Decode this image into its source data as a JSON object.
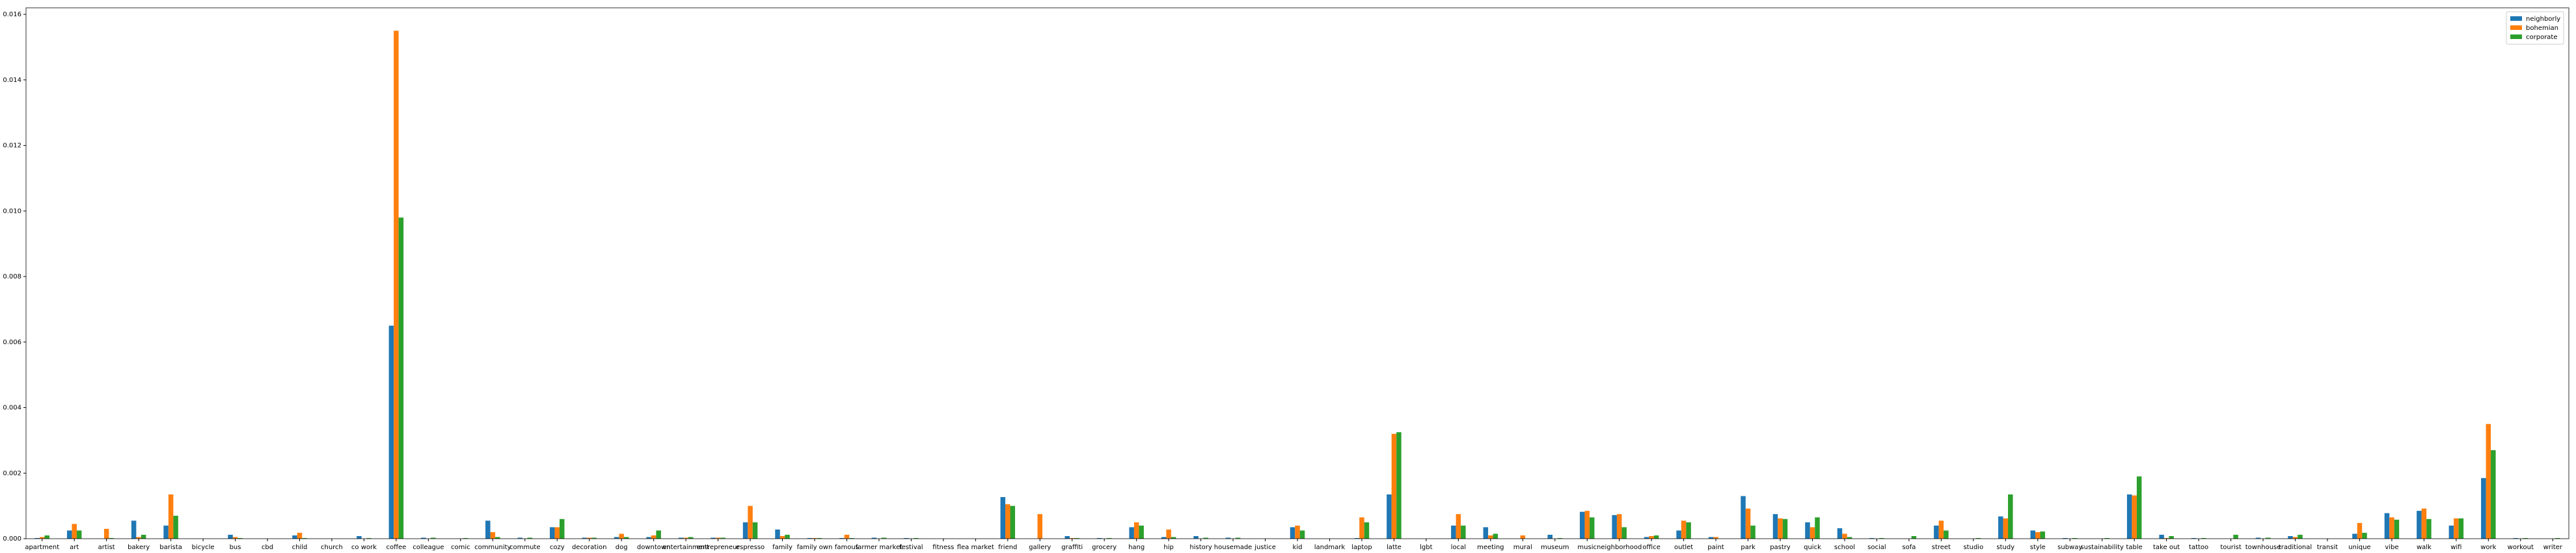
{
  "chart_data": {
    "type": "bar",
    "categories": [
      "apartment",
      "art",
      "artist",
      "bakery",
      "barista",
      "bicycle",
      "bus",
      "cbd",
      "child",
      "church",
      "co work",
      "coffee",
      "colleague",
      "comic",
      "community",
      "commute",
      "cozy",
      "decoration",
      "dog",
      "downtown",
      "entertainment",
      "entrepreneur",
      "espresso",
      "family",
      "family own",
      "famous",
      "farmer market",
      "festival",
      "fitness",
      "flea market",
      "friend",
      "gallery",
      "graffiti",
      "grocery",
      "hang",
      "hip",
      "history",
      "housemade",
      "justice",
      "kid",
      "landmark",
      "laptop",
      "latte",
      "lgbt",
      "local",
      "meeting",
      "mural",
      "museum",
      "music",
      "neighborhood",
      "office",
      "outlet",
      "paint",
      "park",
      "pastry",
      "quick",
      "school",
      "social",
      "sofa",
      "street",
      "studio",
      "study",
      "style",
      "subway",
      "sustainability",
      "table",
      "take out",
      "tattoo",
      "tourist",
      "townhouse",
      "traditional",
      "transit",
      "unique",
      "vibe",
      "walk",
      "wifi",
      "work",
      "workout",
      "writer"
    ],
    "series": [
      {
        "name": "neighborly",
        "color": "#1f77b4",
        "values": [
          2e-05,
          0.00025,
          0,
          0.00055,
          0.0004,
          0,
          0.00012,
          0,
          0.0001,
          0,
          8e-05,
          0.0065,
          3e-05,
          0,
          0.00055,
          3e-05,
          0.00035,
          3e-05,
          5e-05,
          5e-05,
          3e-05,
          3e-05,
          0.0005,
          0.00028,
          2e-05,
          2e-05,
          3e-05,
          2e-05,
          0,
          0,
          0.00127,
          0,
          8e-05,
          2e-05,
          0.00035,
          5e-05,
          8e-05,
          3e-05,
          0,
          0.00035,
          0,
          2e-05,
          0.00135,
          0,
          0.0004,
          0.00035,
          0,
          0.00012,
          0.00082,
          0.00072,
          5e-05,
          0.00025,
          5e-05,
          0.0013,
          0.00075,
          0.0005,
          0.00032,
          2e-05,
          0,
          0.0004,
          0,
          0.00068,
          0.00025,
          2e-05,
          0,
          0.00135,
          0.00012,
          2e-05,
          0,
          3e-05,
          8e-05,
          0,
          0.00015,
          0.00078,
          0.00085,
          0.0004,
          0.00185,
          2e-05,
          0
        ]
      },
      {
        "name": "bohemian",
        "color": "#ff7f0e",
        "values": [
          5e-05,
          0.00045,
          0.0003,
          5e-05,
          0.00135,
          0,
          5e-05,
          0,
          0.00018,
          0,
          0,
          0.0155,
          0,
          0,
          0.0002,
          0,
          0.00035,
          3e-05,
          0.00015,
          0.0001,
          3e-05,
          3e-05,
          0.001,
          8e-05,
          2e-05,
          0.00012,
          0,
          0,
          0,
          0,
          0.00105,
          0.00075,
          2e-05,
          0,
          0.0005,
          0.00028,
          0,
          0,
          0,
          0.0004,
          0,
          0.00065,
          0.0032,
          0,
          0.00075,
          0.0001,
          0.0001,
          0,
          0.00085,
          0.00075,
          8e-05,
          0.00055,
          5e-05,
          0.00092,
          0.00062,
          0.00035,
          0.00015,
          0,
          0,
          0.00055,
          0,
          0.00062,
          0.0002,
          0,
          0,
          0.00132,
          2e-05,
          0,
          0,
          0,
          5e-05,
          0,
          0.00048,
          0.00065,
          0.00092,
          0.00062,
          0.0035,
          0,
          0
        ]
      },
      {
        "name": "corporate",
        "color": "#2ca02c",
        "values": [
          0.0001,
          0.00025,
          2e-05,
          0.00012,
          0.0007,
          0,
          2e-05,
          0,
          2e-05,
          0,
          2e-05,
          0.0098,
          3e-05,
          2e-05,
          5e-05,
          3e-05,
          0.0006,
          3e-05,
          5e-05,
          0.00025,
          5e-05,
          3e-05,
          0.0005,
          0.00012,
          2e-05,
          2e-05,
          3e-05,
          2e-05,
          0,
          0,
          0.001,
          0,
          2e-05,
          2e-05,
          0.0004,
          5e-05,
          3e-05,
          3e-05,
          0,
          0.00025,
          0,
          0.0005,
          0.00325,
          0,
          0.0004,
          0.00015,
          0,
          2e-05,
          0.00065,
          0.00035,
          0.0001,
          0.0005,
          0,
          0.0004,
          0.0006,
          0.00065,
          5e-05,
          2e-05,
          8e-05,
          0.00025,
          2e-05,
          0.00135,
          0.00022,
          2e-05,
          2e-05,
          0.0019,
          8e-05,
          2e-05,
          0.00012,
          3e-05,
          0.00012,
          0,
          0.00018,
          0.00058,
          0.0006,
          0.00062,
          0.0027,
          2e-05,
          2e-05
        ]
      }
    ],
    "ylim": [
      0,
      0.0162
    ],
    "yticks": [
      {
        "value": 0,
        "label": "0.000"
      },
      0.002,
      0.004,
      0.006,
      0.008,
      {
        "value": 0.01,
        "label": "0.010"
      },
      0.012,
      0.014,
      0.016
    ],
    "legend": "upper right"
  }
}
